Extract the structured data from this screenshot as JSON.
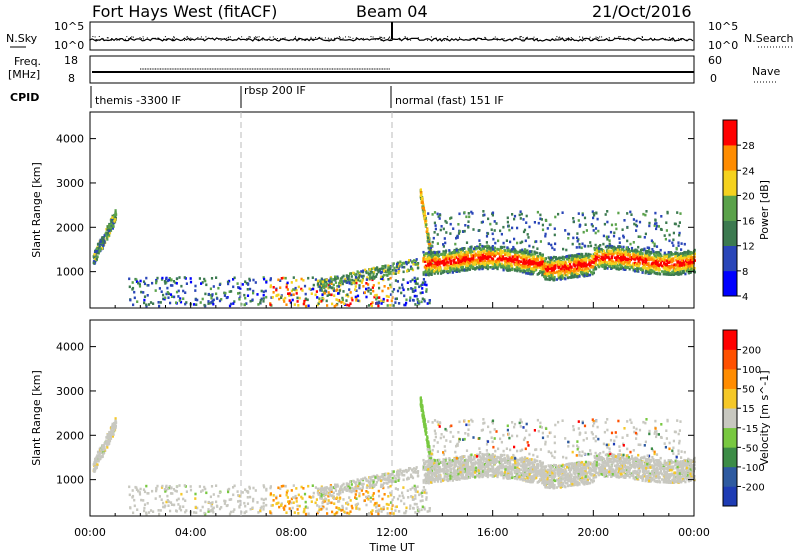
{
  "header": {
    "title": "Fort Hays West (fitACF)",
    "beam": "Beam 04",
    "date": "21/Oct/2016"
  },
  "strips": {
    "nsky_label": "N.Sky",
    "nsearch_label": "N.Search",
    "freq_label_1": "Freq.",
    "freq_label_2": "[MHz]",
    "nave_label": "Nave",
    "cpid_label": "CPID",
    "noise_ticks_left": [
      "10^5",
      "10^0"
    ],
    "noise_ticks_right": [
      "10^5",
      "10^0"
    ],
    "freq_ticks": [
      "18",
      "8"
    ],
    "nave_ticks": [
      "60",
      "0"
    ]
  },
  "cpid": [
    {
      "label": "themis -3300 IF",
      "start_hour": 0,
      "end_hour": 6
    },
    {
      "label": "rbsp 200 IF",
      "start_hour": 6,
      "end_hour": 12
    },
    {
      "label": "normal (fast) 151 IF",
      "start_hour": 12,
      "end_hour": 24
    }
  ],
  "chart_data": [
    {
      "type": "heatmap",
      "panel": "power",
      "ylabel": "Slant Range [km]",
      "colorbar_label": "Power [dB]",
      "xlim": [
        0,
        24
      ],
      "ylim": [
        180,
        4600
      ],
      "yticks": [
        1000,
        2000,
        3000,
        4000
      ],
      "colorbar_ticks": [
        "28",
        "24",
        "20",
        "16",
        "12",
        "8",
        "4"
      ],
      "colorbar_colors": [
        "#0000ff",
        "#2a46b8",
        "#3c7a50",
        "#5aa24a",
        "#f5d21e",
        "#ff8c00",
        "#ff0000"
      ],
      "features": [
        {
          "desc": "early band",
          "hours": [
            0.1,
            1.0
          ],
          "range_km": [
            1300,
            2400
          ],
          "power_db": 14
        },
        {
          "desc": "main band",
          "hours": [
            13.2,
            24
          ],
          "range_km": [
            1050,
            1500
          ],
          "power_db": 26
        }
      ]
    },
    {
      "type": "heatmap",
      "panel": "velocity",
      "ylabel": "Slant Range [km]",
      "colorbar_label": "Velocity [m s^-1]",
      "xlim": [
        0,
        24
      ],
      "ylim": [
        180,
        4600
      ],
      "yticks": [
        1000,
        2000,
        3000,
        4000
      ],
      "xlabel": "Time UT",
      "xticks": [
        "00:00",
        "04:00",
        "08:00",
        "12:00",
        "16:00",
        "20:00",
        "00:00"
      ],
      "colorbar_ticks": [
        "200",
        "100",
        "50",
        "15",
        "-15",
        "-50",
        "-100",
        "-200"
      ],
      "colorbar_colors": [
        "#1e3cb4",
        "#2e5aa0",
        "#3c8c46",
        "#78c840",
        "#c8c8c0",
        "#f5c828",
        "#ff8c00",
        "#ff5000",
        "#ff0000"
      ]
    }
  ]
}
